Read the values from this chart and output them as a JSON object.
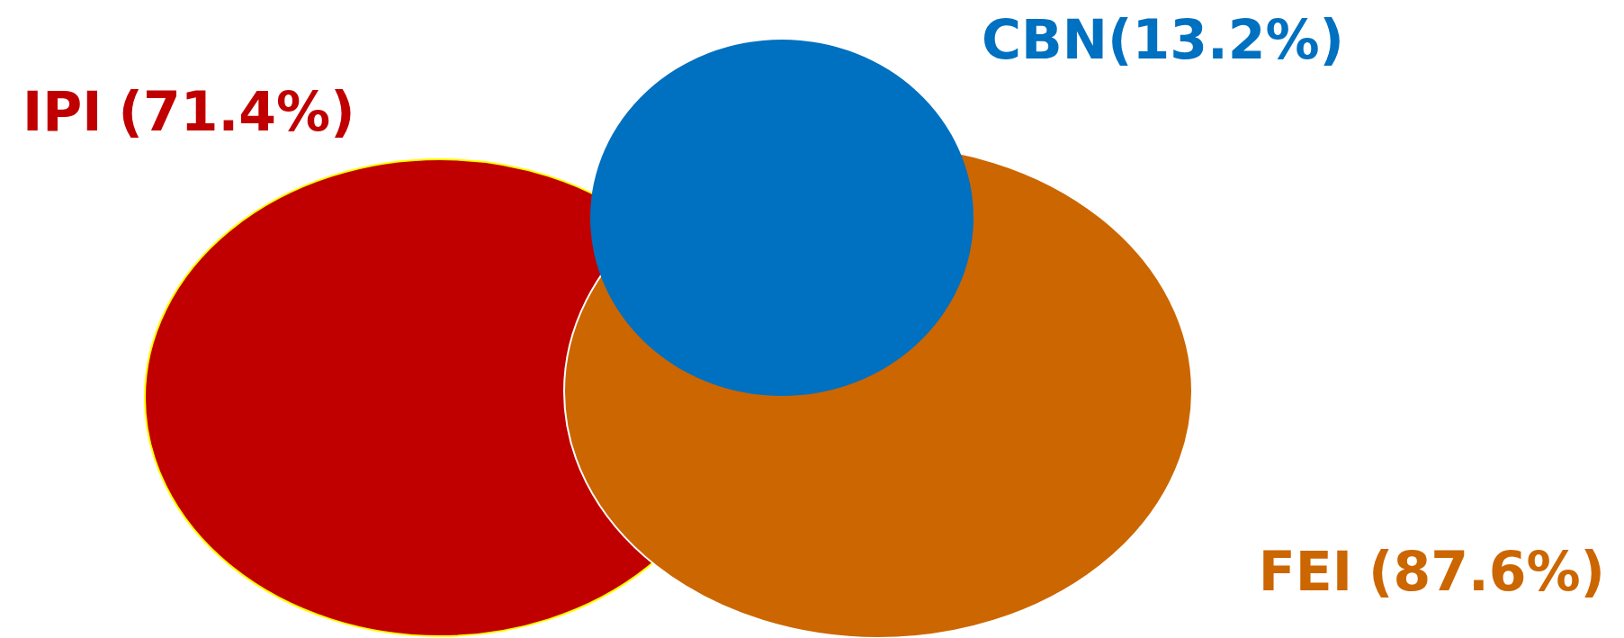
{
  "chart_data": {
    "type": "other",
    "categories": [
      "IPI",
      "CBN",
      "FEI"
    ],
    "values": [
      71.4,
      13.2,
      87.6
    ],
    "value_labels": [
      "(71.4%)",
      "(13.2%)",
      "(87.6%)"
    ],
    "colors": [
      "#c00000",
      "#0070c0",
      "#cc6600"
    ]
  }
}
